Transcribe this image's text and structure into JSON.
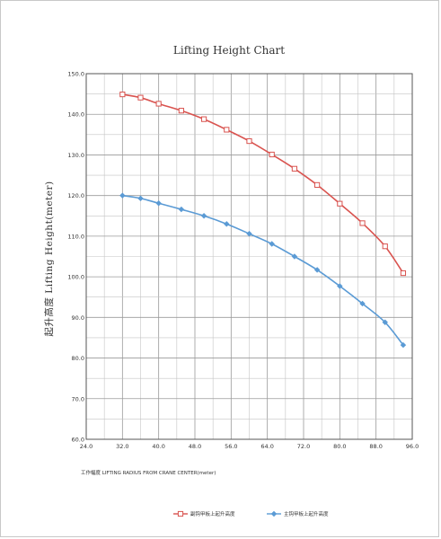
{
  "chart_data": {
    "type": "line",
    "title": "Lifting Height Chart",
    "ylabel": "起升高度 Lifting Height(meter)",
    "xlabel": "工作幅度   LIFTING RADIUS FROM CRANE CENTER(meter)",
    "xlim": [
      24.0,
      96.0
    ],
    "ylim": [
      60.0,
      150.0
    ],
    "x_ticks": [
      "24.0",
      "32.0",
      "40.0",
      "48.0",
      "56.0",
      "64.0",
      "72.0",
      "80.0",
      "88.0",
      "96.0"
    ],
    "y_ticks": [
      "60.0",
      "70.0",
      "80.0",
      "90.0",
      "100.0",
      "110.0",
      "120.0",
      "130.0",
      "140.0",
      "150.0"
    ],
    "grid": true,
    "legend_position": "bottom-center",
    "series": [
      {
        "name": "副钩甲板上起升高度",
        "color": "#d9534f",
        "marker": "square",
        "x": [
          32,
          36,
          40,
          45,
          50,
          55,
          60,
          65,
          70,
          75,
          80,
          85,
          90,
          94
        ],
        "y": [
          144.9,
          144.1,
          142.6,
          140.9,
          138.8,
          136.2,
          133.4,
          130.1,
          126.6,
          122.6,
          118.0,
          113.2,
          107.5,
          100.9
        ]
      },
      {
        "name": "主钩甲板上起升高度",
        "color": "#5b9bd5",
        "marker": "diamond",
        "x": [
          32,
          36,
          40,
          45,
          50,
          55,
          60,
          65,
          70,
          75,
          80,
          85,
          90,
          94
        ],
        "y": [
          120.0,
          119.3,
          118.1,
          116.6,
          115.0,
          113.0,
          110.6,
          108.1,
          105.0,
          101.7,
          97.7,
          93.4,
          88.8,
          83.2
        ]
      }
    ]
  }
}
